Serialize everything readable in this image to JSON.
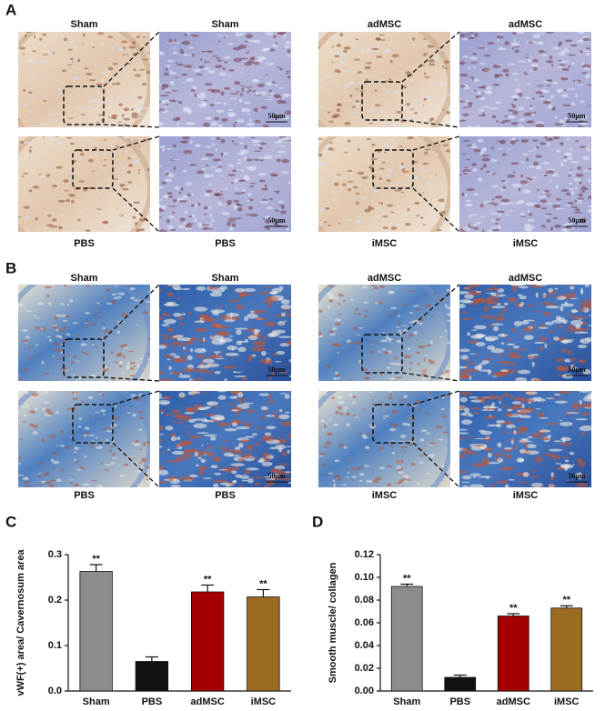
{
  "micrograph_panels": [
    {
      "letter": "A",
      "groups": [
        {
          "overview_label": "Sham",
          "zoom_label": "Sham",
          "scale_bar": "50μm"
        },
        {
          "overview_label": "adMSC",
          "zoom_label": "adMSC",
          "scale_bar": "50μm"
        },
        {
          "overview_label": "PBS",
          "zoom_label": "PBS",
          "scale_bar": "50μm"
        },
        {
          "overview_label": "iMSC",
          "zoom_label": "iMSC",
          "scale_bar": "50μm"
        }
      ]
    },
    {
      "letter": "B",
      "groups": [
        {
          "overview_label": "Sham",
          "zoom_label": "Sham",
          "scale_bar": "50μm"
        },
        {
          "overview_label": "adMSC",
          "zoom_label": "adMSC",
          "scale_bar": "50μm"
        },
        {
          "overview_label": "PBS",
          "zoom_label": "PBS",
          "scale_bar": "50μm"
        },
        {
          "overview_label": "iMSC",
          "zoom_label": "iMSC",
          "scale_bar": "50μm"
        }
      ]
    }
  ],
  "chart_data": [
    {
      "type": "bar",
      "panel_label": "C",
      "y_label": "vWF(+) area/ Cavernosum area",
      "categories": [
        "Sham",
        "PBS",
        "adMSC",
        "iMSC"
      ],
      "values": [
        0.263,
        0.065,
        0.218,
        0.207
      ],
      "errors": [
        0.015,
        0.01,
        0.015,
        0.016
      ],
      "annotations": [
        "**",
        null,
        "**",
        "**"
      ],
      "colors": [
        "#8c8c8c",
        "#111111",
        "#a40000",
        "#9c6b22"
      ],
      "ylim": [
        0,
        0.3
      ],
      "yticks": [
        {
          "value": 0,
          "label": "0.0"
        },
        0.1,
        0.2,
        0.3
      ]
    },
    {
      "type": "bar",
      "panel_label": "D",
      "y_label": "Smooth muscle/ collagen",
      "categories": [
        "Sham",
        "PBS",
        "adMSC",
        "iMSC"
      ],
      "values": [
        0.092,
        0.012,
        0.066,
        0.073
      ],
      "errors": [
        0.002,
        0.002,
        0.002,
        0.002
      ],
      "annotations": [
        "**",
        null,
        "**",
        "**"
      ],
      "colors": [
        "#8c8c8c",
        "#111111",
        "#a40000",
        "#9c6b22"
      ],
      "ylim": [
        0,
        0.12
      ],
      "yticks": [
        {
          "value": 0,
          "label": "0.00"
        },
        {
          "value": 0.02,
          "label": "0.02"
        },
        {
          "value": 0.04,
          "label": "0.04"
        },
        {
          "value": 0.06,
          "label": "0.06"
        },
        {
          "value": 0.08,
          "label": "0.08"
        },
        {
          "value": 0.1,
          "label": "0.10"
        },
        {
          "value": 0.12,
          "label": "0.12"
        }
      ]
    }
  ]
}
